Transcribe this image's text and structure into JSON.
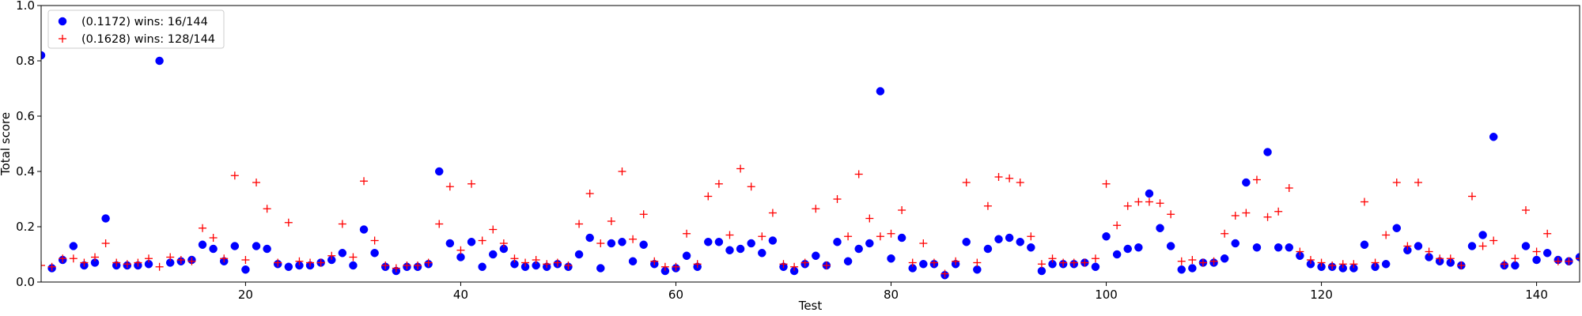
{
  "chart_data": {
    "type": "scatter",
    "xlabel": "Test",
    "ylabel": "Total score",
    "xlim": [
      1,
      144
    ],
    "ylim": [
      0.0,
      1.0
    ],
    "xticks": [
      20,
      40,
      60,
      80,
      100,
      120,
      140
    ],
    "yticks": [
      0.0,
      0.2,
      0.4,
      0.6,
      0.8,
      1.0
    ],
    "ytick_labels": [
      "0.0",
      "0.2",
      "0.4",
      "0.6",
      "0.8",
      "1.0"
    ],
    "grid": false,
    "legend_position": "top-left",
    "series": [
      {
        "name": "(0.1172) wins: 16/144",
        "marker": "circle",
        "color": "#0000ff",
        "x": [
          1,
          2,
          3,
          4,
          5,
          6,
          7,
          8,
          9,
          10,
          11,
          12,
          13,
          14,
          15,
          16,
          17,
          18,
          19,
          20,
          21,
          22,
          23,
          24,
          25,
          26,
          27,
          28,
          29,
          30,
          31,
          32,
          33,
          34,
          35,
          36,
          37,
          38,
          39,
          40,
          41,
          42,
          43,
          44,
          45,
          46,
          47,
          48,
          49,
          50,
          51,
          52,
          53,
          54,
          55,
          56,
          57,
          58,
          59,
          60,
          61,
          62,
          63,
          64,
          65,
          66,
          67,
          68,
          69,
          70,
          71,
          72,
          73,
          74,
          75,
          76,
          77,
          78,
          79,
          80,
          81,
          82,
          83,
          84,
          85,
          86,
          87,
          88,
          89,
          90,
          91,
          92,
          93,
          94,
          95,
          96,
          97,
          98,
          99,
          100,
          101,
          102,
          103,
          104,
          105,
          106,
          107,
          108,
          109,
          110,
          111,
          112,
          113,
          114,
          115,
          116,
          117,
          118,
          119,
          120,
          121,
          122,
          123,
          124,
          125,
          126,
          127,
          128,
          129,
          130,
          131,
          132,
          133,
          134,
          135,
          136,
          137,
          138,
          139,
          140,
          141,
          142,
          143,
          144
        ],
        "y": [
          0.82,
          0.05,
          0.08,
          0.13,
          0.06,
          0.07,
          0.23,
          0.06,
          0.06,
          0.06,
          0.065,
          0.8,
          0.07,
          0.075,
          0.08,
          0.135,
          0.12,
          0.075,
          0.13,
          0.045,
          0.13,
          0.12,
          0.065,
          0.055,
          0.06,
          0.06,
          0.07,
          0.08,
          0.105,
          0.06,
          0.19,
          0.105,
          0.055,
          0.04,
          0.055,
          0.055,
          0.065,
          0.4,
          0.14,
          0.09,
          0.145,
          0.055,
          0.1,
          0.12,
          0.065,
          0.055,
          0.06,
          0.055,
          0.065,
          0.055,
          0.1,
          0.16,
          0.05,
          0.14,
          0.145,
          0.075,
          0.135,
          0.065,
          0.04,
          0.05,
          0.095,
          0.055,
          0.145,
          0.145,
          0.115,
          0.12,
          0.14,
          0.105,
          0.15,
          0.055,
          0.04,
          0.065,
          0.095,
          0.06,
          0.145,
          0.075,
          0.12,
          0.14,
          0.69,
          0.085,
          0.16,
          0.05,
          0.065,
          0.065,
          0.025,
          0.065,
          0.145,
          0.045,
          0.12,
          0.155,
          0.16,
          0.145,
          0.125,
          0.04,
          0.065,
          0.065,
          0.065,
          0.07,
          0.055,
          0.165,
          0.1,
          0.12,
          0.125,
          0.32,
          0.195,
          0.13,
          0.045,
          0.05,
          0.07,
          0.07,
          0.085,
          0.14,
          0.36,
          0.125,
          0.47,
          0.125,
          0.125,
          0.095,
          0.065,
          0.055,
          0.055,
          0.05,
          0.05,
          0.135,
          0.055,
          0.065,
          0.195,
          0.115,
          0.13,
          0.09,
          0.075,
          0.07,
          0.06,
          0.13,
          0.17,
          0.525,
          0.06,
          0.06,
          0.13,
          0.08,
          0.105,
          0.08,
          0.075,
          0.09
        ]
      },
      {
        "name": "(0.1628) wins: 128/144",
        "marker": "plus",
        "color": "#ff0000",
        "x": [
          1,
          2,
          3,
          4,
          5,
          6,
          7,
          8,
          9,
          10,
          11,
          12,
          13,
          14,
          15,
          16,
          17,
          18,
          19,
          20,
          21,
          22,
          23,
          24,
          25,
          26,
          27,
          28,
          29,
          30,
          31,
          32,
          33,
          34,
          35,
          36,
          37,
          38,
          39,
          40,
          41,
          42,
          43,
          44,
          45,
          46,
          47,
          48,
          49,
          50,
          51,
          52,
          53,
          54,
          55,
          56,
          57,
          58,
          59,
          60,
          61,
          62,
          63,
          64,
          65,
          66,
          67,
          68,
          69,
          70,
          71,
          72,
          73,
          74,
          75,
          76,
          77,
          78,
          79,
          80,
          81,
          82,
          83,
          84,
          85,
          86,
          87,
          88,
          89,
          90,
          91,
          92,
          93,
          94,
          95,
          96,
          97,
          98,
          99,
          100,
          101,
          102,
          103,
          104,
          105,
          106,
          107,
          108,
          109,
          110,
          111,
          112,
          113,
          114,
          115,
          116,
          117,
          118,
          119,
          120,
          121,
          122,
          123,
          124,
          125,
          126,
          127,
          128,
          129,
          130,
          131,
          132,
          133,
          134,
          135,
          136,
          137,
          138,
          139,
          140,
          141,
          142,
          143,
          144
        ],
        "y": [
          0.06,
          0.055,
          0.085,
          0.085,
          0.07,
          0.09,
          0.14,
          0.07,
          0.065,
          0.07,
          0.085,
          0.055,
          0.09,
          0.08,
          0.075,
          0.195,
          0.16,
          0.085,
          0.385,
          0.08,
          0.36,
          0.265,
          0.07,
          0.215,
          0.075,
          0.07,
          0.07,
          0.095,
          0.21,
          0.09,
          0.365,
          0.15,
          0.06,
          0.05,
          0.06,
          0.06,
          0.07,
          0.21,
          0.345,
          0.115,
          0.355,
          0.15,
          0.19,
          0.14,
          0.085,
          0.07,
          0.08,
          0.065,
          0.07,
          0.06,
          0.21,
          0.32,
          0.14,
          0.22,
          0.4,
          0.155,
          0.245,
          0.075,
          0.055,
          0.055,
          0.175,
          0.065,
          0.31,
          0.355,
          0.17,
          0.41,
          0.345,
          0.165,
          0.25,
          0.065,
          0.055,
          0.07,
          0.265,
          0.06,
          0.3,
          0.165,
          0.39,
          0.23,
          0.165,
          0.175,
          0.26,
          0.07,
          0.14,
          0.07,
          0.03,
          0.075,
          0.36,
          0.07,
          0.275,
          0.38,
          0.375,
          0.36,
          0.165,
          0.065,
          0.085,
          0.07,
          0.07,
          0.07,
          0.085,
          0.355,
          0.205,
          0.275,
          0.29,
          0.29,
          0.285,
          0.245,
          0.075,
          0.08,
          0.07,
          0.075,
          0.175,
          0.24,
          0.25,
          0.37,
          0.235,
          0.255,
          0.34,
          0.11,
          0.08,
          0.07,
          0.06,
          0.065,
          0.065,
          0.29,
          0.07,
          0.17,
          0.36,
          0.13,
          0.36,
          0.11,
          0.085,
          0.085,
          0.06,
          0.31,
          0.13,
          0.15,
          0.065,
          0.085,
          0.26,
          0.11,
          0.175,
          0.075,
          0.075,
          0.085
        ]
      }
    ]
  }
}
